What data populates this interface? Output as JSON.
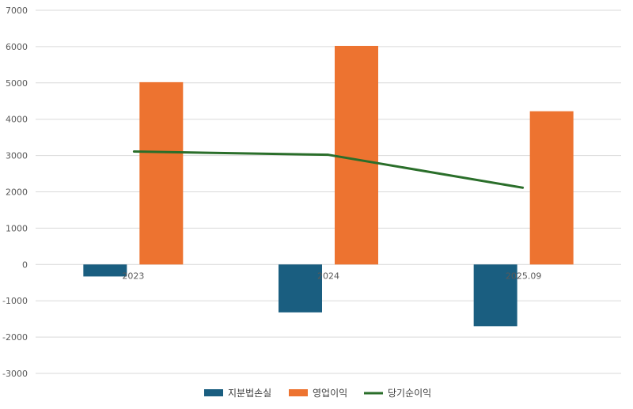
{
  "chart_data": {
    "type": "bar",
    "categories": [
      "2023",
      "2024",
      "2025.09"
    ],
    "series": [
      {
        "name": "지분법손실",
        "type": "bar",
        "color": "#1a5e80",
        "values": [
          -330,
          -1320,
          -1700
        ]
      },
      {
        "name": "영업이익",
        "type": "bar",
        "color": "#ed7330",
        "values": [
          5020,
          6020,
          4220
        ]
      },
      {
        "name": "당기순이익",
        "type": "line",
        "color": "#2a6e2a",
        "values": [
          3110,
          3020,
          2110
        ]
      }
    ],
    "ylim": [
      -3000,
      7000
    ],
    "yticks": [
      "7000",
      "6000",
      "5000",
      "4000",
      "3000",
      "2000",
      "1000",
      "0",
      "-1000",
      "-2000",
      "-3000"
    ],
    "grid": true,
    "legend": "bottom"
  }
}
